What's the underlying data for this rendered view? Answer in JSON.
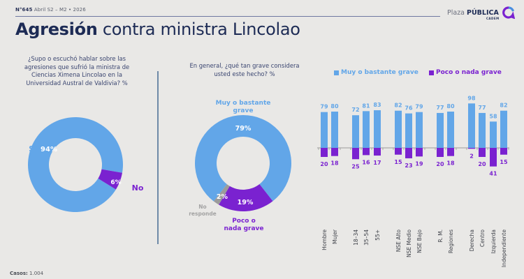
{
  "header": {
    "issue_number": "N°645",
    "issue_period": "Abril S2 – M2 • 2026",
    "title_bold": "Agresión",
    "title_light": "contra ministra Lincolao",
    "brand_light": "Plaza",
    "brand_bold": "PÚBLICA",
    "brand_sub": "CADEM"
  },
  "colors": {
    "blue": "#62a6e8",
    "purple": "#7a22d0",
    "gray": "#9b9b9b",
    "navy": "#1d2b55"
  },
  "footer": {
    "cases_label": "Casos:",
    "cases_value": "1.004"
  },
  "chart_data": [
    {
      "type": "pie",
      "donut": true,
      "title": "¿Supo o escuchó hablar sobre las agresiones que sufrió la ministra de Ciencias Ximena Lincolao en la Universidad Austral de Valdivia? %",
      "slices": [
        {
          "label": "Sí",
          "value": 94,
          "value_label": "94%",
          "color": "#62a6e8"
        },
        {
          "label": "No",
          "value": 6,
          "value_label": "6%",
          "color": "#7a22d0"
        }
      ]
    },
    {
      "type": "pie",
      "donut": true,
      "title": "En general, ¿qué tan grave considera usted este hecho? %",
      "slices": [
        {
          "label": "Muy o bastante grave",
          "value": 79,
          "value_label": "79%",
          "color": "#62a6e8"
        },
        {
          "label": "Poco o nada grave",
          "value": 19,
          "value_label": "19%",
          "color": "#7a22d0"
        },
        {
          "label": "No responde",
          "value": 2,
          "value_label": "2%",
          "color": "#9b9b9b"
        }
      ]
    },
    {
      "type": "bar",
      "orientation": "diverging-vertical",
      "legend": [
        "Muy o bastante grave",
        "Poco o nada grave"
      ],
      "legend_position": "top",
      "categories": [
        "Hombre",
        "Mujer",
        "18–34",
        "35–54",
        "55+",
        "NSE Alto",
        "NSE Medio",
        "NSE Bajo",
        "R. M.",
        "Regiones",
        "Derecha",
        "Centro",
        "Izquierda",
        "Independiente"
      ],
      "groups": [
        [
          "Hombre",
          "Mujer"
        ],
        [
          "18–34",
          "35–54",
          "55+"
        ],
        [
          "NSE Alto",
          "NSE Medio",
          "NSE Bajo"
        ],
        [
          "R. M.",
          "Regiones"
        ],
        [
          "Derecha",
          "Centro",
          "Izquierda",
          "Independiente"
        ]
      ],
      "series": [
        {
          "name": "Muy o bastante grave",
          "color": "#62a6e8",
          "values": [
            79,
            80,
            72,
            81,
            83,
            82,
            76,
            79,
            77,
            80,
            98,
            77,
            58,
            82
          ]
        },
        {
          "name": "Poco o nada grave",
          "color": "#7a22d0",
          "values": [
            20,
            18,
            25,
            16,
            17,
            15,
            23,
            19,
            20,
            18,
            2,
            20,
            41,
            15
          ]
        }
      ],
      "ylim": [
        -45,
        100
      ],
      "grid": false
    }
  ]
}
